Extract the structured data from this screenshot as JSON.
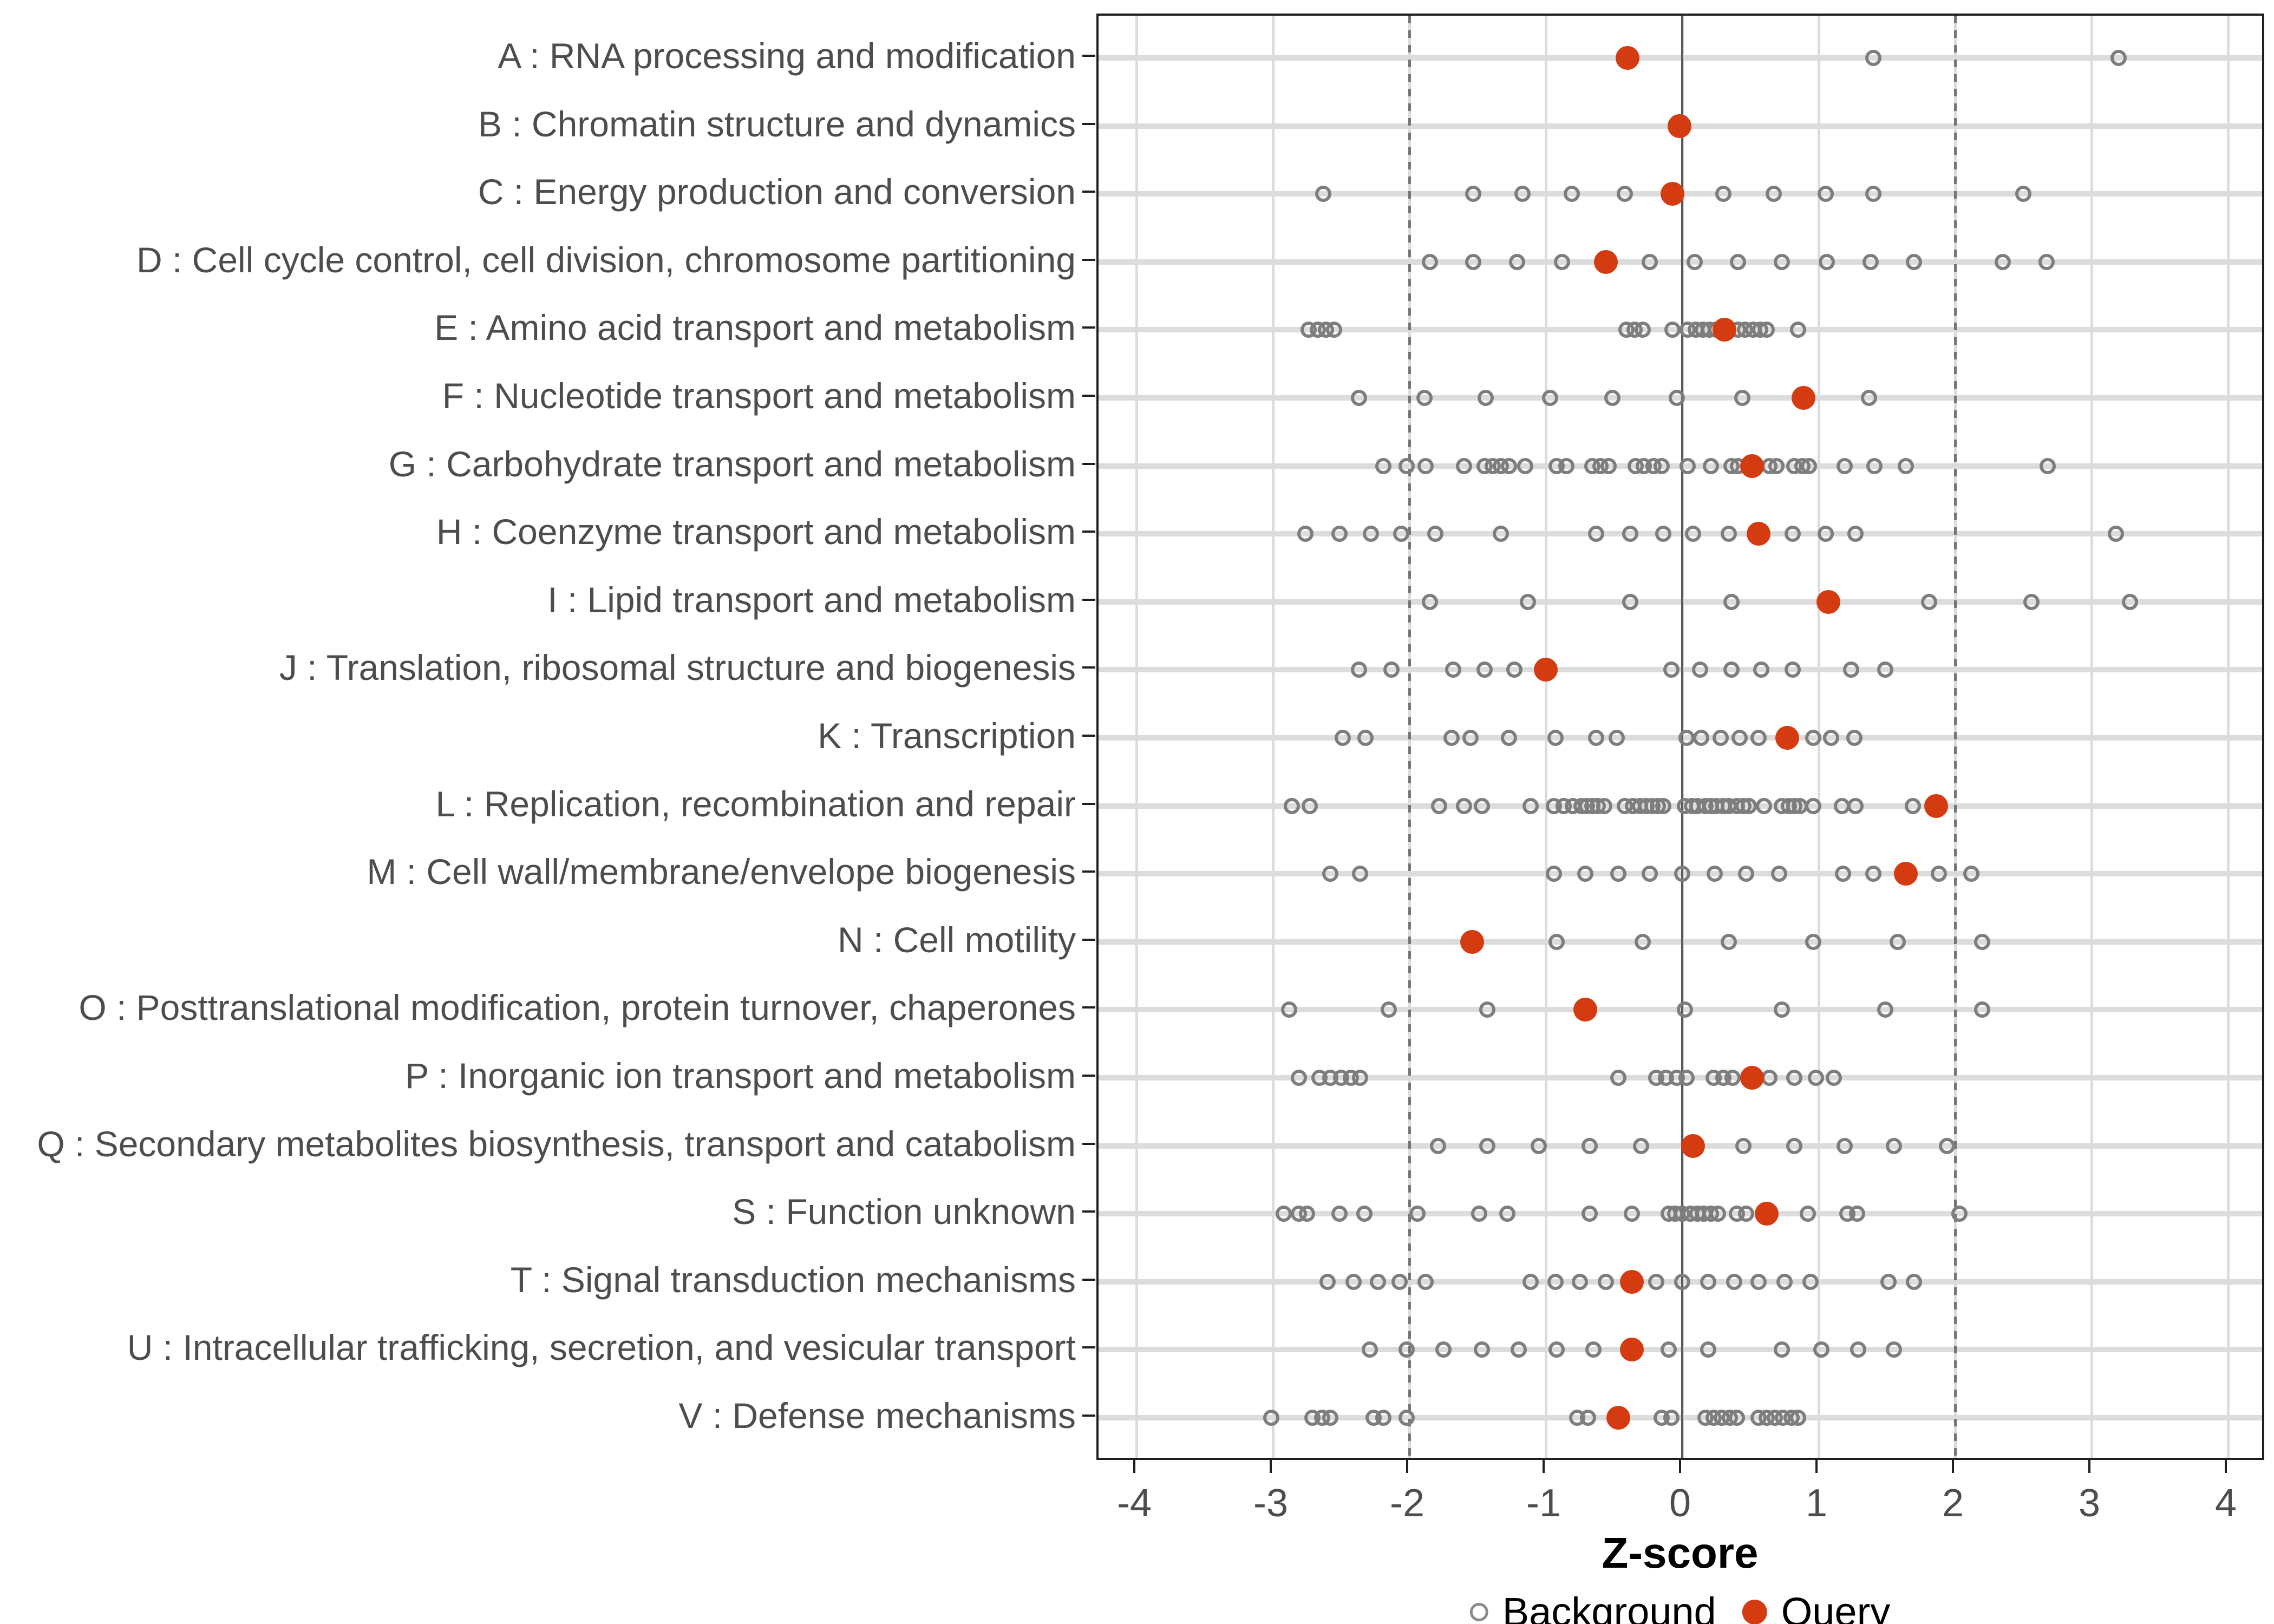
{
  "colors": {
    "query": "#d43b11",
    "background_stroke": "#7e7e7e",
    "grid": "#dcdcdc",
    "zero_line": "#5a5a5a",
    "dashed_line": "#757575",
    "panel_border": "#1f1f1f",
    "tick_text": "#4d4d4d",
    "title_text": "#000000"
  },
  "chart_data": {
    "type": "scatter",
    "title": "",
    "xlabel": "Z-score",
    "xlim": [
      -4.4,
      4.4
    ],
    "x_ticks": [
      -4,
      -3,
      -2,
      -1,
      0,
      1,
      2,
      3,
      4
    ],
    "grid": "on",
    "legend_position": "bottom",
    "reference_lines": {
      "solid": [
        0
      ],
      "dashed": [
        -2,
        2
      ]
    },
    "legend": [
      {
        "label": "Background",
        "marker": "open-circle",
        "color": "#7e7e7e"
      },
      {
        "label": "Query",
        "marker": "filled-circle",
        "color": "#d43b11"
      }
    ],
    "series_names": [
      "Background",
      "Query"
    ],
    "categories": [
      {
        "label": "A : RNA processing and modification",
        "query": -0.4,
        "background": [
          1.4,
          3.2
        ]
      },
      {
        "label": "B : Chromatin structure and dynamics",
        "query": -0.02,
        "background": []
      },
      {
        "label": "C : Energy production and conversion",
        "query": -0.07,
        "background": [
          -2.63,
          -1.53,
          -1.17,
          -0.81,
          -0.42,
          0.3,
          0.67,
          1.05,
          1.4,
          2.5
        ]
      },
      {
        "label": "D : Cell cycle control, cell division, chromosome partitioning",
        "query": -0.56,
        "background": [
          -1.85,
          -1.53,
          -1.21,
          -0.88,
          -0.24,
          0.09,
          0.41,
          0.73,
          1.06,
          1.38,
          1.7,
          2.35,
          2.67
        ]
      },
      {
        "label": "E : Amino acid transport and metabolism",
        "query": 0.31,
        "background": [
          -2.74,
          -2.67,
          -2.61,
          -2.55,
          -0.41,
          -0.35,
          -0.29,
          -0.07,
          0.04,
          0.1,
          0.15,
          0.2,
          0.25,
          0.41,
          0.46,
          0.52,
          0.57,
          0.62,
          0.85
        ]
      },
      {
        "label": "F : Nucleotide transport and metabolism",
        "query": 0.89,
        "background": [
          -2.37,
          -1.89,
          -1.44,
          -0.97,
          -0.51,
          -0.04,
          0.44,
          1.37
        ]
      },
      {
        "label": "G : Carbohydrate transport and metabolism",
        "query": 0.51,
        "background": [
          -2.19,
          -2.02,
          -1.88,
          -1.6,
          -1.45,
          -1.39,
          -1.33,
          -1.27,
          -1.15,
          -0.92,
          -0.85,
          -0.66,
          -0.6,
          -0.54,
          -0.34,
          -0.28,
          -0.21,
          -0.15,
          0.04,
          0.21,
          0.36,
          0.41,
          0.64,
          0.69,
          0.82,
          0.88,
          0.93,
          1.19,
          1.41,
          1.64,
          2.68
        ]
      },
      {
        "label": "H : Coenzyme transport and metabolism",
        "query": 0.56,
        "background": [
          -2.76,
          -2.51,
          -2.28,
          -2.06,
          -1.81,
          -1.33,
          -0.63,
          -0.38,
          -0.14,
          0.08,
          0.34,
          0.81,
          1.05,
          1.27,
          3.18
        ]
      },
      {
        "label": "I : Lipid transport and metabolism",
        "query": 1.07,
        "background": [
          -1.85,
          -1.13,
          -0.38,
          0.36,
          1.81,
          2.56,
          3.28
        ]
      },
      {
        "label": "J : Translation, ribosomal structure and biogenesis",
        "query": -1.0,
        "background": [
          -2.37,
          -2.13,
          -1.68,
          -1.45,
          -1.23,
          -0.08,
          0.13,
          0.36,
          0.58,
          0.81,
          1.24,
          1.49
        ]
      },
      {
        "label": "K : Transcription",
        "query": 0.77,
        "background": [
          -2.49,
          -2.32,
          -1.69,
          -1.55,
          -1.27,
          -0.93,
          -0.63,
          -0.48,
          0.03,
          0.14,
          0.28,
          0.42,
          0.56,
          0.96,
          1.09,
          1.26
        ]
      },
      {
        "label": "L : Replication, recombination and repair",
        "query": 1.86,
        "background": [
          -2.86,
          -2.73,
          -1.78,
          -1.6,
          -1.47,
          -1.11,
          -0.94,
          -0.87,
          -0.8,
          -0.74,
          -0.7,
          -0.66,
          -0.62,
          -0.57,
          -0.42,
          -0.36,
          -0.31,
          -0.26,
          -0.22,
          -0.18,
          -0.14,
          0.02,
          0.07,
          0.11,
          0.17,
          0.21,
          0.25,
          0.3,
          0.34,
          0.4,
          0.45,
          0.49,
          0.6,
          0.73,
          0.78,
          0.82,
          0.86,
          0.96,
          1.17,
          1.27,
          1.69
        ]
      },
      {
        "label": "M : Cell wall/membrane/envelope biogenesis",
        "query": 1.64,
        "background": [
          -2.58,
          -2.36,
          -0.94,
          -0.71,
          -0.47,
          -0.24,
          0.0,
          0.24,
          0.47,
          0.71,
          1.18,
          1.4,
          1.88,
          2.12
        ]
      },
      {
        "label": "N : Cell motility",
        "query": -1.54,
        "background": [
          -0.92,
          -0.29,
          0.34,
          0.96,
          1.58,
          2.2
        ]
      },
      {
        "label": "O : Posttranslational modification, protein turnover, chaperones",
        "query": -0.71,
        "background": [
          -2.88,
          -2.15,
          -1.43,
          0.02,
          0.73,
          1.49,
          2.2
        ]
      },
      {
        "label": "P : Inorganic ion transport and metabolism",
        "query": 0.51,
        "background": [
          -2.81,
          -2.66,
          -2.58,
          -2.5,
          -2.43,
          -2.36,
          -0.47,
          -0.19,
          -0.12,
          -0.04,
          0.03,
          0.23,
          0.3,
          0.37,
          0.64,
          0.82,
          0.98,
          1.11
        ]
      },
      {
        "label": "Q : Secondary metabolites biosynthesis, transport and catabolism",
        "query": 0.08,
        "background": [
          -1.79,
          -1.43,
          -1.05,
          -0.68,
          -0.3,
          0.45,
          0.82,
          1.19,
          1.55,
          1.94
        ]
      },
      {
        "label": "S : Function unknown",
        "query": 0.62,
        "background": [
          -2.92,
          -2.81,
          -2.75,
          -2.51,
          -2.33,
          -1.94,
          -1.49,
          -1.28,
          -0.68,
          -0.37,
          -0.1,
          -0.05,
          0.0,
          0.06,
          0.11,
          0.16,
          0.21,
          0.26,
          0.4,
          0.47,
          0.92,
          1.21,
          1.28,
          2.03
        ]
      },
      {
        "label": "T : Signal transduction mechanisms",
        "query": -0.37,
        "background": [
          -2.6,
          -2.41,
          -2.23,
          -2.07,
          -1.88,
          -1.11,
          -0.93,
          -0.75,
          -0.56,
          -0.19,
          0.0,
          0.19,
          0.38,
          0.56,
          0.75,
          0.94,
          1.51,
          1.7
        ]
      },
      {
        "label": "U : Intracellular trafficking, secretion, and vesicular transport",
        "query": -0.37,
        "background": [
          -2.29,
          -2.02,
          -1.75,
          -1.47,
          -1.2,
          -0.92,
          -0.65,
          -0.1,
          0.19,
          0.73,
          1.02,
          1.29,
          1.55
        ]
      },
      {
        "label": "V : Defense mechanisms",
        "query": -0.47,
        "background": [
          -3.01,
          -2.71,
          -2.64,
          -2.58,
          -2.26,
          -2.19,
          -2.02,
          -0.77,
          -0.69,
          -0.15,
          -0.08,
          0.17,
          0.23,
          0.29,
          0.35,
          0.4,
          0.56,
          0.62,
          0.68,
          0.74,
          0.8,
          0.85
        ]
      }
    ]
  }
}
